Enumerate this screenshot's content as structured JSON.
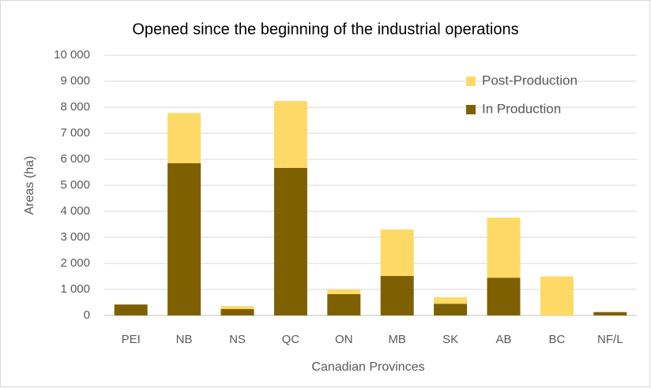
{
  "chart_data": {
    "type": "stacked_bar",
    "title": "Opened since the beginning of the industrial operations",
    "x_label": "Canadian Provinces",
    "y_label": "Areas (ha)",
    "categories": [
      "PEI",
      "NB",
      "NS",
      "QC",
      "ON",
      "MB",
      "SK",
      "AB",
      "BC",
      "NF/L"
    ],
    "series": [
      {
        "name": "In Production",
        "color": "#7f6000",
        "values": [
          420,
          5850,
          250,
          5670,
          820,
          1520,
          450,
          1450,
          0,
          130
        ]
      },
      {
        "name": "Post-Production",
        "color": "#ffd966",
        "values": [
          0,
          1930,
          110,
          2570,
          180,
          1780,
          250,
          2310,
          1500,
          0
        ]
      }
    ],
    "ylim": [
      0,
      10000
    ],
    "yticks": [
      0,
      {
        "value": 1000,
        "label": "1 000"
      },
      {
        "value": 2000,
        "label": "2 000"
      },
      {
        "value": 3000,
        "label": "3 000"
      },
      {
        "value": 4000,
        "label": "4 000"
      },
      {
        "value": 5000,
        "label": "5 000"
      },
      {
        "value": 6000,
        "label": "6 000"
      },
      {
        "value": 7000,
        "label": "7 000"
      },
      {
        "value": 8000,
        "label": "8 000"
      },
      {
        "value": 9000,
        "label": "9 000"
      },
      {
        "value": 10000,
        "label": "10 000"
      }
    ],
    "grid": true,
    "legend": "upper right"
  }
}
